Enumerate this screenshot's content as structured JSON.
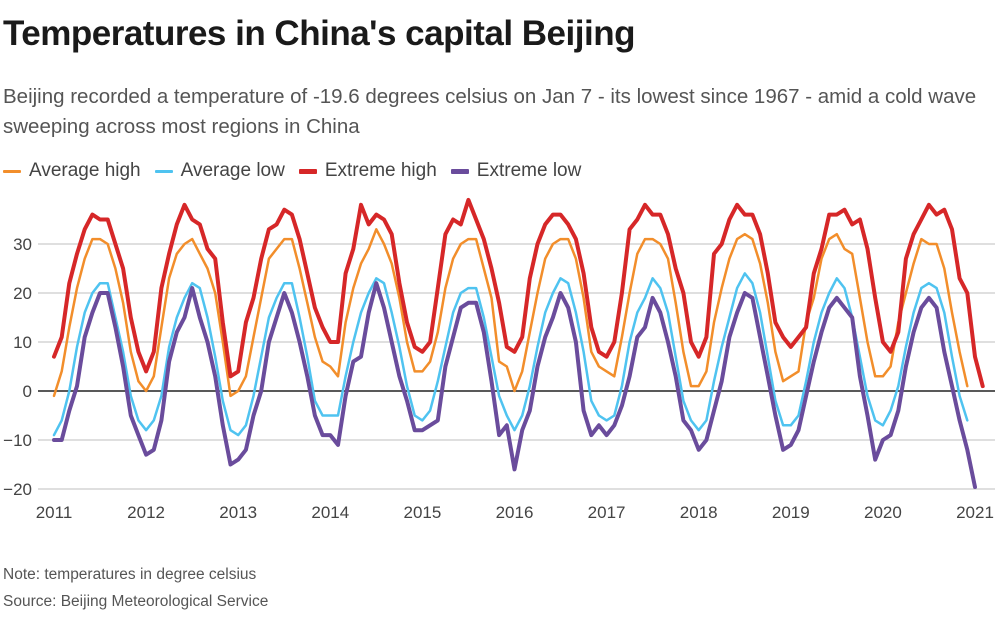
{
  "header": {
    "title": "Temperatures in China's capital Beijing",
    "subtitle": "Beijing recorded a temperature of -19.6 degrees celsius on Jan 7 - its lowest since 1967 - amid a cold wave sweeping across most regions in China"
  },
  "legend": [
    {
      "label": "Average high",
      "color": "#f28e2b"
    },
    {
      "label": "Average low",
      "color": "#4fc3f0"
    },
    {
      "label": "Extreme high",
      "color": "#d62728"
    },
    {
      "label": "Extreme low",
      "color": "#6a4c9c"
    }
  ],
  "footer": {
    "note": "Note: temperatures in degree celsius",
    "source": "Source: Beijing Meteorological Service"
  },
  "chart_data": {
    "type": "line",
    "title": "Temperatures in China's capital Beijing",
    "xlabel": "",
    "ylabel": "",
    "ylim": [
      -20,
      38
    ],
    "yticks": [
      -20,
      -10,
      0,
      10,
      20,
      30
    ],
    "xticks": [
      "2011",
      "2012",
      "2013",
      "2014",
      "2015",
      "2016",
      "2017",
      "2018",
      "2019",
      "2020",
      "2021"
    ],
    "x_start": "2011-01",
    "x_unit": "month",
    "grid": true,
    "legend_position": "top-left",
    "annotation": "Jan 7 2021: -19.6",
    "series": [
      {
        "name": "Average high",
        "color": "#f28e2b",
        "values": [
          -1,
          4,
          13,
          21,
          27,
          31,
          31,
          30,
          25,
          18,
          8,
          2,
          0,
          3,
          13,
          23,
          28,
          30,
          31,
          28,
          25,
          20,
          10,
          -1,
          0,
          3,
          11,
          19,
          27,
          29,
          31,
          31,
          25,
          18,
          11,
          6,
          5,
          3,
          14,
          21,
          26,
          29,
          33,
          30,
          26,
          19,
          10,
          4,
          4,
          6,
          12,
          21,
          27,
          30,
          31,
          31,
          25,
          19,
          6,
          5,
          0,
          4,
          12,
          20,
          27,
          30,
          31,
          31,
          27,
          19,
          8,
          5,
          4,
          3,
          11,
          20,
          28,
          31,
          31,
          30,
          27,
          18,
          8,
          1,
          1,
          4,
          14,
          21,
          27,
          31,
          32,
          31,
          26,
          18,
          8,
          2,
          3,
          4,
          14,
          19,
          27,
          31,
          32,
          29,
          28,
          19,
          10,
          3,
          3,
          5,
          14,
          20,
          26,
          31,
          30,
          30,
          25,
          16,
          8,
          1
        ]
      },
      {
        "name": "Average low",
        "color": "#4fc3f0",
        "values": [
          -9,
          -6,
          0,
          9,
          16,
          20,
          22,
          22,
          15,
          8,
          -1,
          -6,
          -8,
          -6,
          -1,
          9,
          15,
          19,
          22,
          21,
          15,
          7,
          -2,
          -8,
          -9,
          -7,
          -1,
          7,
          15,
          19,
          22,
          22,
          15,
          7,
          -2,
          -5,
          -5,
          -5,
          3,
          10,
          16,
          20,
          23,
          22,
          16,
          9,
          1,
          -5,
          -6,
          -4,
          2,
          9,
          16,
          20,
          21,
          21,
          15,
          7,
          -1,
          -5,
          -8,
          -5,
          1,
          9,
          16,
          20,
          23,
          22,
          16,
          8,
          -2,
          -5,
          -6,
          -5,
          1,
          10,
          16,
          19,
          23,
          21,
          16,
          7,
          -2,
          -6,
          -8,
          -6,
          2,
          9,
          15,
          21,
          24,
          22,
          16,
          7,
          -2,
          -7,
          -7,
          -5,
          2,
          10,
          16,
          20,
          23,
          21,
          15,
          7,
          -1,
          -6,
          -7,
          -4,
          1,
          9,
          16,
          21,
          22,
          21,
          16,
          7,
          -1,
          -6
        ]
      },
      {
        "name": "Extreme high",
        "color": "#d62728",
        "values": [
          7,
          11,
          22,
          28,
          33,
          36,
          35,
          35,
          30,
          25,
          15,
          8,
          4,
          8,
          21,
          28,
          34,
          38,
          35,
          34,
          29,
          27,
          14,
          3,
          4,
          14,
          19,
          27,
          33,
          34,
          37,
          36,
          31,
          24,
          17,
          13,
          10,
          10,
          24,
          29,
          38,
          34,
          36,
          35,
          32,
          22,
          14,
          9,
          8,
          10,
          21,
          32,
          35,
          34,
          39,
          35,
          31,
          25,
          18,
          9,
          8,
          11,
          23,
          30,
          34,
          36,
          36,
          34,
          31,
          24,
          13,
          8,
          7,
          10,
          20,
          33,
          35,
          38,
          36,
          36,
          32,
          25,
          20,
          10,
          7,
          11,
          28,
          30,
          35,
          38,
          36,
          36,
          32,
          24,
          14,
          11,
          9,
          11,
          13,
          24,
          29,
          36,
          36,
          37,
          34,
          35,
          29,
          19,
          10,
          8,
          12,
          27,
          32,
          35,
          38,
          36,
          37,
          33,
          23,
          20,
          7,
          1
        ]
      },
      {
        "name": "Extreme low",
        "color": "#6a4c9c",
        "values": [
          -10,
          -10,
          -4,
          1,
          11,
          16,
          20,
          20,
          13,
          5,
          -5,
          -9,
          -13,
          -12,
          -6,
          6,
          12,
          15,
          21,
          15,
          10,
          3,
          -7,
          -15,
          -14,
          -12,
          -5,
          0,
          10,
          15,
          20,
          16,
          10,
          3,
          -5,
          -9,
          -9,
          -11,
          -1,
          6,
          7,
          16,
          22,
          17,
          10,
          3,
          -2,
          -8,
          -8,
          -7,
          -6,
          5,
          11,
          17,
          18,
          18,
          12,
          2,
          -9,
          -7,
          -16,
          -8,
          -4,
          5,
          11,
          15,
          20,
          17,
          10,
          -4,
          -9,
          -7,
          -9,
          -7,
          -3,
          3,
          11,
          13,
          19,
          16,
          10,
          3,
          -6,
          -8,
          -12,
          -10,
          -4,
          2,
          11,
          16,
          20,
          19,
          11,
          3,
          -5,
          -12,
          -11,
          -8,
          -1,
          6,
          12,
          17,
          19,
          17,
          15,
          3,
          -5,
          -14,
          -10,
          -9,
          -4,
          5,
          12,
          17,
          19,
          17,
          8,
          1,
          -6,
          -12,
          -19.6
        ]
      }
    ]
  }
}
